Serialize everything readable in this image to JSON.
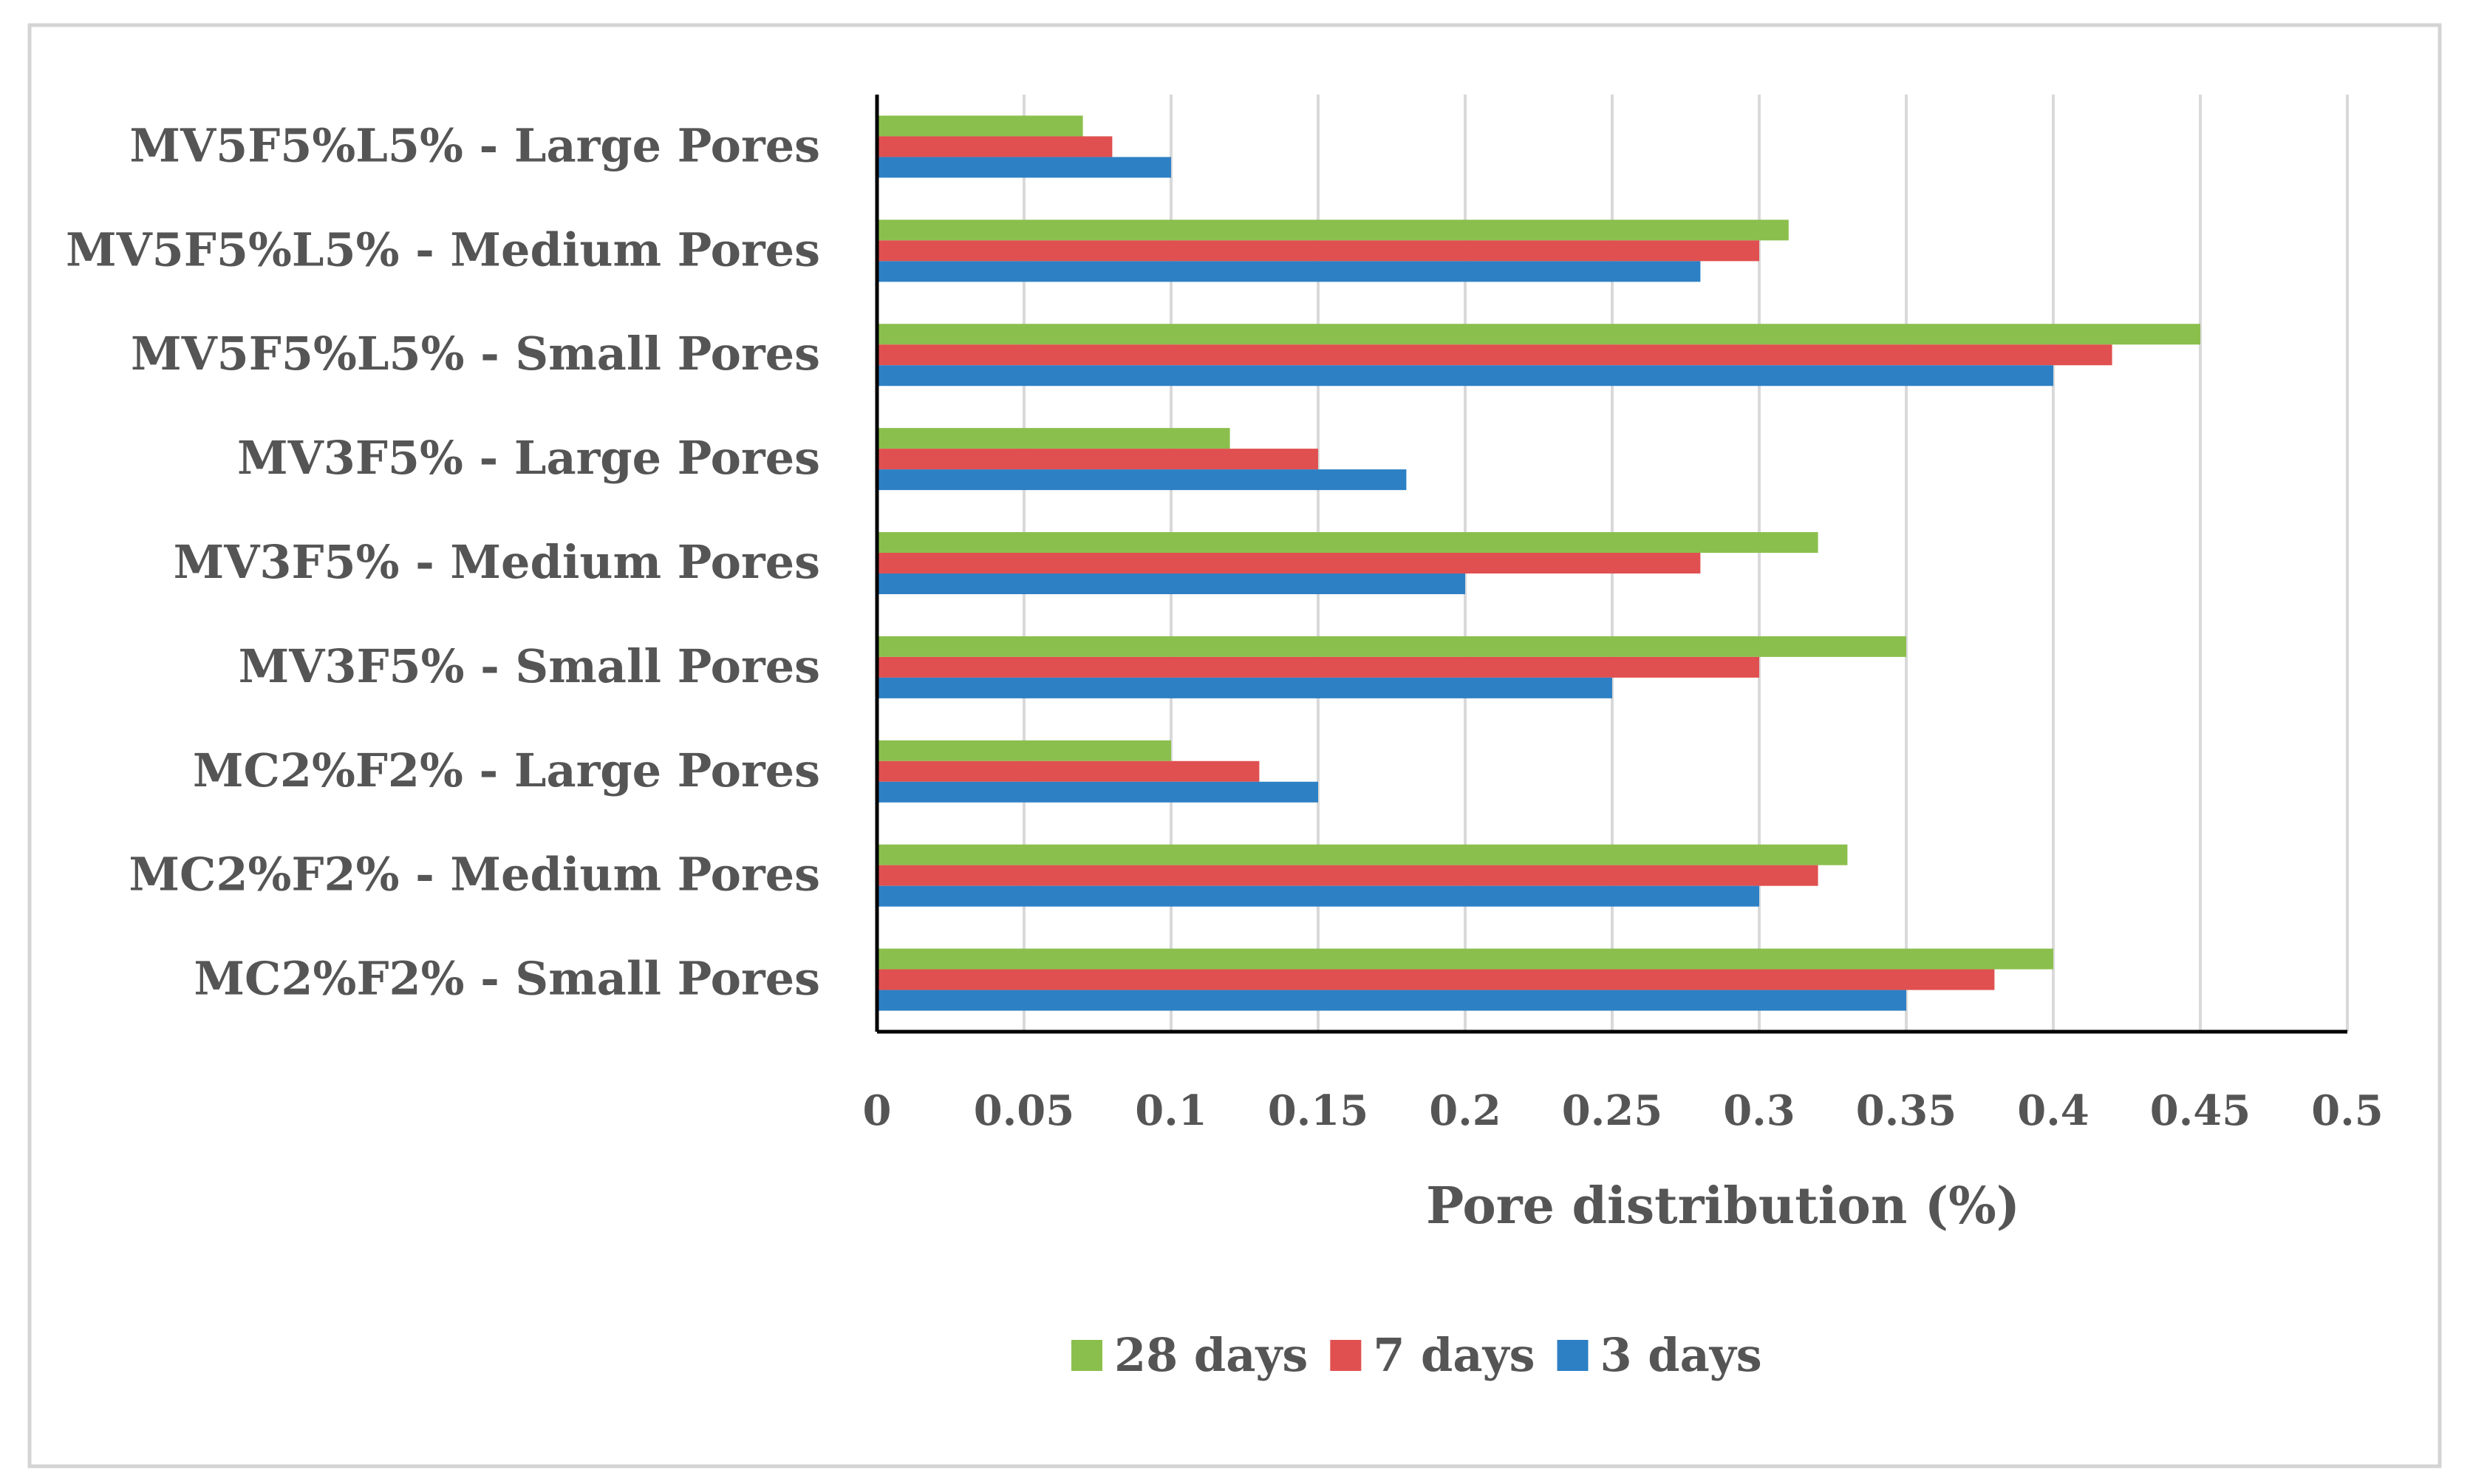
{
  "chart_data": {
    "type": "bar",
    "orientation": "horizontal",
    "categories": [
      "MV5F5%L5% - Large Pores",
      "MV5F5%L5% - Medium Pores",
      "MV5F5%L5% - Small Pores",
      "MV3F5% - Large Pores",
      "MV3F5% - Medium Pores",
      "MV3F5% - Small Pores",
      "MC2%F2% - Large Pores",
      "MC2%F2% - Medium Pores",
      "MC2%F2% - Small Pores"
    ],
    "series": [
      {
        "name": "28 days",
        "color": "#8bbf4d",
        "values": [
          0.07,
          0.31,
          0.45,
          0.12,
          0.32,
          0.35,
          0.1,
          0.33,
          0.4
        ]
      },
      {
        "name": "7 days",
        "color": "#e05050",
        "values": [
          0.08,
          0.3,
          0.42,
          0.15,
          0.28,
          0.3,
          0.13,
          0.32,
          0.38
        ]
      },
      {
        "name": "3 days",
        "color": "#2e80c4",
        "values": [
          0.1,
          0.28,
          0.4,
          0.18,
          0.2,
          0.25,
          0.15,
          0.3,
          0.35
        ]
      }
    ],
    "xlabel": "Pore distribution (%)",
    "ylabel": "",
    "xlim": [
      0,
      0.5
    ],
    "xticks": [
      "0",
      "0.05",
      "0.1",
      "0.15",
      "0.2",
      "0.25",
      "0.3",
      "0.35",
      "0.4",
      "0.45",
      "0.5"
    ],
    "grid": true,
    "legend_position": "bottom"
  }
}
